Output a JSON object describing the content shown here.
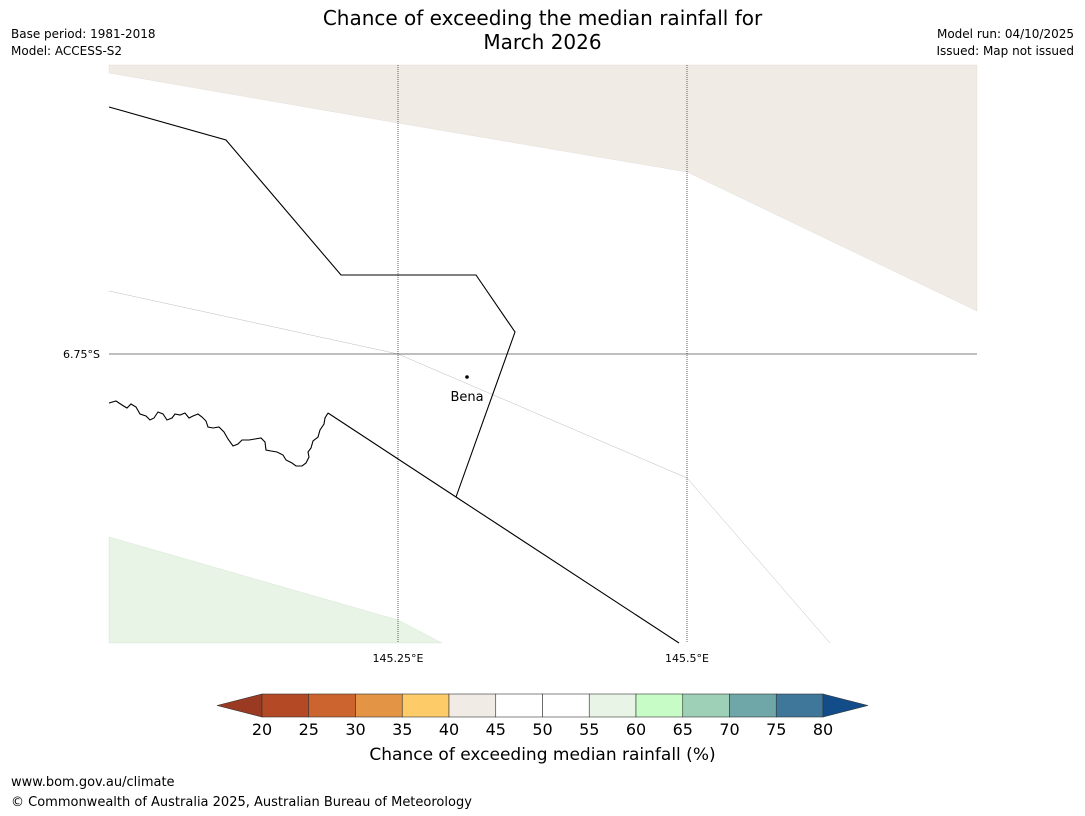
{
  "title": {
    "line1": "Chance of exceeding the median rainfall for",
    "line2": "March 2026"
  },
  "meta": {
    "base_period": "Base period: 1981-2018",
    "model": "Model: ACCESS-S2",
    "model_run": "Model run: 04/10/2025",
    "issued": "Issued: Map not issued"
  },
  "map": {
    "lat_label": "6.75°S",
    "lon_labels": [
      "145.25°E",
      "145.5°E"
    ],
    "place": "Bena",
    "colors": {
      "band_40_45": "#f0ebe5",
      "band_55_60": "#e8f4e6",
      "border": "#000000",
      "grid": "#000000"
    }
  },
  "colorbar": {
    "title": "Chance of exceeding median rainfall (%)",
    "ticks": [
      "20",
      "25",
      "30",
      "35",
      "40",
      "45",
      "50",
      "55",
      "60",
      "65",
      "70",
      "75",
      "80"
    ],
    "colors": [
      "#9a3a23",
      "#b34925",
      "#cc6430",
      "#e49445",
      "#fdcb68",
      "#f0ebe5",
      "#ffffff",
      "#ffffff",
      "#e8f4e6",
      "#c7fcc7",
      "#9ed0b8",
      "#6fa6a8",
      "#3e7799",
      "#124d89"
    ]
  },
  "footer": {
    "url": "www.bom.gov.au/climate",
    "copyright": "© Commonwealth of Australia 2025, Australian Bureau of Meteorology"
  }
}
